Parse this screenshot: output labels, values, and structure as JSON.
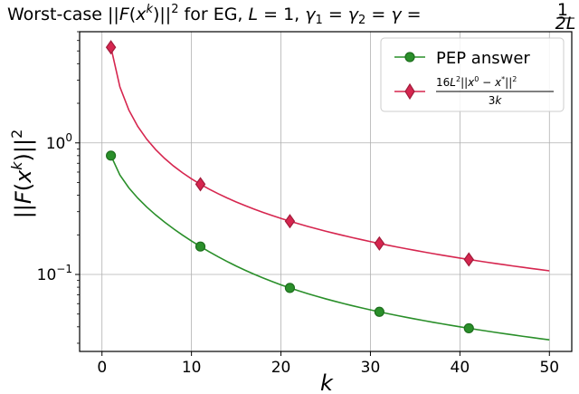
{
  "chart_data": {
    "type": "line",
    "title": "Worst-case ||F(x^k)||^2 for EG, L = 1, γ1 = γ2 = γ = 1/(2L)",
    "title_parts": {
      "prefix": "Worst-case ||",
      "F": "F",
      "x_open": "(",
      "x": "x",
      "k_sup": "k",
      "x_close": ")||",
      "sq": "2",
      "for_eg": " for EG, ",
      "L": "L",
      "eq1": " = 1, ",
      "gamma": "γ",
      "sub1": "1",
      "eq_sign": " = ",
      "sub2": "2",
      "eq_sign2": " = ",
      "eq_sign3": " = ",
      "frac_num": "1",
      "frac_den": "2L"
    },
    "xlabel": "k",
    "ylabel": "||F(x^k)||^2",
    "ylabel_parts": {
      "bars_open": "||",
      "F": "F",
      "paren_open": "(",
      "x": "x",
      "k_sup": "k",
      "close": ")||",
      "sq": "2"
    },
    "x_range": [
      -2.5,
      52.5
    ],
    "y_scale": "log",
    "y_range": [
      0.026,
      7.0
    ],
    "grid": true,
    "legend_position": "top-right",
    "x_ticks": [
      0,
      10,
      20,
      30,
      40,
      50
    ],
    "x_tick_labels": [
      "0",
      "10",
      "20",
      "30",
      "40",
      "50"
    ],
    "y_ticks": [
      {
        "value": 1.0,
        "base": "10",
        "exp": "0"
      },
      {
        "value": 0.1,
        "base": "10",
        "exp": "−1"
      }
    ],
    "series": [
      {
        "name": "PEP answer",
        "color": "#2a8f2a",
        "marker": "circle",
        "x": [
          1,
          11,
          21,
          31,
          41
        ],
        "y": [
          0.8,
          0.163,
          0.079,
          0.052,
          0.039
        ]
      },
      {
        "name": "16L^2||x^0 − x^*||^2 / (3k)",
        "label_parts": {
          "num_16": "16",
          "num_L": "L",
          "num_L_sup": "2",
          "num_bars": "||",
          "num_x": "x",
          "num_x_sup": "0",
          "num_minus": " − ",
          "num_x2": "x",
          "num_x2_sup": "*",
          "num_close": "||",
          "num_close_sup": "2",
          "den_3": "3",
          "den_k": "k"
        },
        "color": "#d6264f",
        "marker": "diamond",
        "x": [
          1,
          11,
          21,
          31,
          41
        ],
        "y": [
          5.33,
          0.485,
          0.254,
          0.172,
          0.13
        ]
      }
    ]
  }
}
